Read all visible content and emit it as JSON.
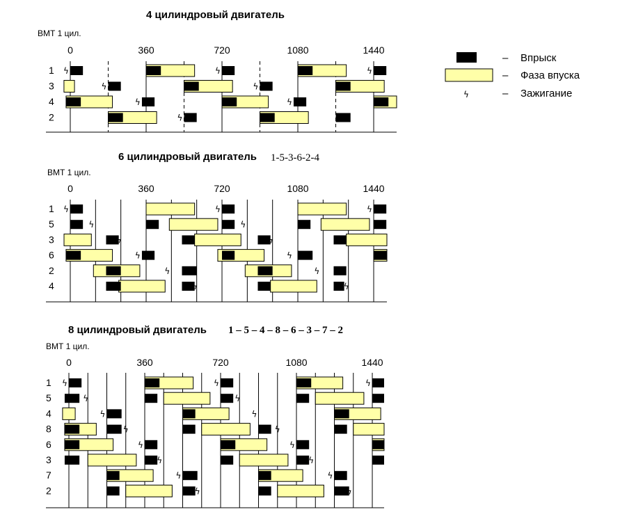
{
  "colors": {
    "injection": "#000000",
    "intake": "#ffffa8",
    "line": "#000000"
  },
  "legend": {
    "injection_label": "Впрыск",
    "intake_label": "Фаза впуска",
    "ignition_label": "Зажигание",
    "dash": "–"
  },
  "diagrams": [
    {
      "title": "4 цилиндровый двигатель",
      "firing_order": "",
      "order_style": "plain",
      "vmt_label": "ВМТ 1 цил.",
      "axis_ticks": [
        "0",
        "360",
        "720",
        "1080",
        "1440"
      ],
      "cylinders": [
        "1",
        "3",
        "4",
        "2"
      ],
      "solid_lines_deg": [
        0,
        360,
        720,
        1080,
        1440
      ],
      "dashed_lines_deg": [
        180,
        540,
        900,
        1260
      ],
      "rows": [
        {
          "cyl": "1",
          "intake": [
            [
              360,
              590
            ],
            [
              1080,
              1310
            ]
          ],
          "inj": [
            [
              0,
              60
            ],
            [
              360,
              430
            ],
            [
              720,
              780
            ],
            [
              1080,
              1150
            ],
            [
              1440,
              1500
            ]
          ],
          "spark": [
            -20,
            700,
            1420
          ]
        },
        {
          "cyl": "3",
          "intake": [
            [
              -30,
              20
            ],
            [
              540,
              770
            ],
            [
              1260,
              1490
            ]
          ],
          "inj": [
            [
              180,
              240
            ],
            [
              540,
              610
            ],
            [
              900,
              960
            ],
            [
              1260,
              1330
            ]
          ],
          "spark": [
            160,
            880
          ]
        },
        {
          "cyl": "4",
          "intake": [
            [
              -20,
              200
            ],
            [
              720,
              940
            ],
            [
              1440,
              1560
            ]
          ],
          "inj": [
            [
              -20,
              50
            ],
            [
              340,
              400
            ],
            [
              720,
              790
            ],
            [
              1060,
              1120
            ],
            [
              1440,
              1510
            ]
          ],
          "spark": [
            320,
            1040
          ]
        },
        {
          "cyl": "2",
          "intake": [
            [
              180,
              410
            ],
            [
              900,
              1130
            ]
          ],
          "inj": [
            [
              180,
              250
            ],
            [
              540,
              600
            ],
            [
              900,
              970
            ],
            [
              1260,
              1330
            ]
          ],
          "spark": [
            520
          ]
        }
      ]
    },
    {
      "title": "6 цилиндровый двигатель",
      "firing_order": "1-5-3-6-2-4",
      "order_style": "plain",
      "vmt_label": "ВМТ 1 цил.",
      "axis_ticks": [
        "0",
        "360",
        "720",
        "1080",
        "1440"
      ],
      "cylinders": [
        "1",
        "5",
        "3",
        "6",
        "2",
        "4"
      ],
      "solid_lines_deg": [
        0,
        120,
        240,
        360,
        480,
        600,
        720,
        840,
        960,
        1080,
        1200,
        1320,
        1440
      ],
      "dashed_lines_deg": [],
      "rows": [
        {
          "cyl": "1",
          "intake": [
            [
              360,
              590
            ],
            [
              1080,
              1310
            ]
          ],
          "inj": [
            [
              0,
              60
            ],
            [
              720,
              780
            ],
            [
              1440,
              1500
            ]
          ],
          "spark": [
            -20,
            700,
            1420
          ]
        },
        {
          "cyl": "5",
          "intake": [
            [
              470,
              700
            ],
            [
              1190,
              1420
            ]
          ],
          "inj": [
            [
              0,
              60
            ],
            [
              360,
              420
            ],
            [
              720,
              780
            ],
            [
              1080,
              1140
            ],
            [
              1440,
              1500
            ]
          ],
          "spark": [
            100,
            820
          ]
        },
        {
          "cyl": "3",
          "intake": [
            [
              -30,
              100
            ],
            [
              590,
              810
            ],
            [
              1310,
              1540
            ]
          ],
          "inj": [
            [
              170,
              230
            ],
            [
              530,
              590
            ],
            [
              890,
              950
            ],
            [
              1250,
              1310
            ]
          ],
          "spark": [
            230,
            950
          ]
        },
        {
          "cyl": "6",
          "intake": [
            [
              -20,
              200
            ],
            [
              700,
              920
            ],
            [
              1440,
              1550
            ]
          ],
          "inj": [
            [
              -20,
              50
            ],
            [
              340,
              400
            ],
            [
              720,
              780
            ],
            [
              1080,
              1150
            ],
            [
              1440,
              1510
            ]
          ],
          "spark": [
            320,
            1040
          ]
        },
        {
          "cyl": "2",
          "intake": [
            [
              110,
              330
            ],
            [
              830,
              1050
            ]
          ],
          "inj": [
            [
              170,
              240
            ],
            [
              530,
              600
            ],
            [
              890,
              960
            ],
            [
              1250,
              1310
            ]
          ],
          "spark": [
            460,
            1170
          ]
        },
        {
          "cyl": "4",
          "intake": [
            [
              230,
              450
            ],
            [
              950,
              1170
            ]
          ],
          "inj": [
            [
              170,
              240
            ],
            [
              530,
              590
            ],
            [
              890,
              950
            ],
            [
              1250,
              1300
            ]
          ],
          "spark": [
            590,
            1310
          ]
        }
      ]
    },
    {
      "title": "8 цилиндровый двигатель",
      "firing_order": "1 – 5 – 4 – 8 – 6 – 3 – 7 – 2",
      "order_style": "bold",
      "vmt_label": "ВМТ 1 цил.",
      "axis_ticks": [
        "0",
        "360",
        "720",
        "1080",
        "1440"
      ],
      "cylinders": [
        "1",
        "5",
        "4",
        "8",
        "6",
        "3",
        "7",
        "2"
      ],
      "solid_lines_deg": [
        0,
        90,
        180,
        270,
        360,
        450,
        540,
        630,
        720,
        810,
        900,
        990,
        1080,
        1170,
        1260,
        1350,
        1440
      ],
      "dashed_lines_deg": [],
      "rows": [
        {
          "cyl": "1",
          "intake": [
            [
              360,
              590
            ],
            [
              1080,
              1300
            ]
          ],
          "inj": [
            [
              0,
              60
            ],
            [
              360,
              430
            ],
            [
              720,
              780
            ],
            [
              1080,
              1150
            ],
            [
              1440,
              1500
            ]
          ],
          "spark": [
            -20,
            700,
            1420
          ]
        },
        {
          "cyl": "5",
          "intake": [
            [
              450,
              670
            ],
            [
              1170,
              1400
            ]
          ],
          "inj": [
            [
              -20,
              50
            ],
            [
              360,
              420
            ],
            [
              720,
              780
            ],
            [
              1080,
              1140
            ],
            [
              1440,
              1510
            ]
          ],
          "spark": [
            80,
            800
          ]
        },
        {
          "cyl": "4",
          "intake": [
            [
              -30,
              30
            ],
            [
              540,
              760
            ],
            [
              1260,
              1480
            ]
          ],
          "inj": [
            [
              180,
              250
            ],
            [
              540,
              600
            ],
            [
              1260,
              1330
            ]
          ],
          "spark": [
            160,
            880
          ]
        },
        {
          "cyl": "8",
          "intake": [
            [
              -20,
              130
            ],
            [
              630,
              860
            ],
            [
              1350,
              1570
            ]
          ],
          "inj": [
            [
              -20,
              50
            ],
            [
              180,
              250
            ],
            [
              540,
              600
            ],
            [
              900,
              960
            ],
            [
              1260,
              1320
            ]
          ],
          "spark": [
            270,
            990
          ]
        },
        {
          "cyl": "6",
          "intake": [
            [
              -20,
              210
            ],
            [
              720,
              940
            ],
            [
              1440,
              1560
            ]
          ],
          "inj": [
            [
              -20,
              50
            ],
            [
              360,
              420
            ],
            [
              720,
              790
            ],
            [
              1080,
              1140
            ],
            [
              1440,
              1510
            ]
          ],
          "spark": [
            340,
            1060
          ]
        },
        {
          "cyl": "3",
          "intake": [
            [
              90,
              320
            ],
            [
              810,
              1040
            ]
          ],
          "inj": [
            [
              -20,
              50
            ],
            [
              360,
              420
            ],
            [
              720,
              780
            ],
            [
              1080,
              1140
            ],
            [
              1440,
              1500
            ]
          ],
          "spark": [
            430,
            1150
          ]
        },
        {
          "cyl": "7",
          "intake": [
            [
              180,
              400
            ],
            [
              900,
              1110
            ]
          ],
          "inj": [
            [
              180,
              240
            ],
            [
              540,
              610
            ],
            [
              900,
              960
            ],
            [
              1260,
              1320
            ]
          ],
          "spark": [
            520,
            1240
          ]
        },
        {
          "cyl": "2",
          "intake": [
            [
              270,
              490
            ],
            [
              990,
              1210
            ]
          ],
          "inj": [
            [
              180,
              240
            ],
            [
              540,
              600
            ],
            [
              900,
              960
            ],
            [
              1260,
              1330
            ]
          ],
          "spark": [
            610,
            1330
          ]
        }
      ]
    }
  ]
}
